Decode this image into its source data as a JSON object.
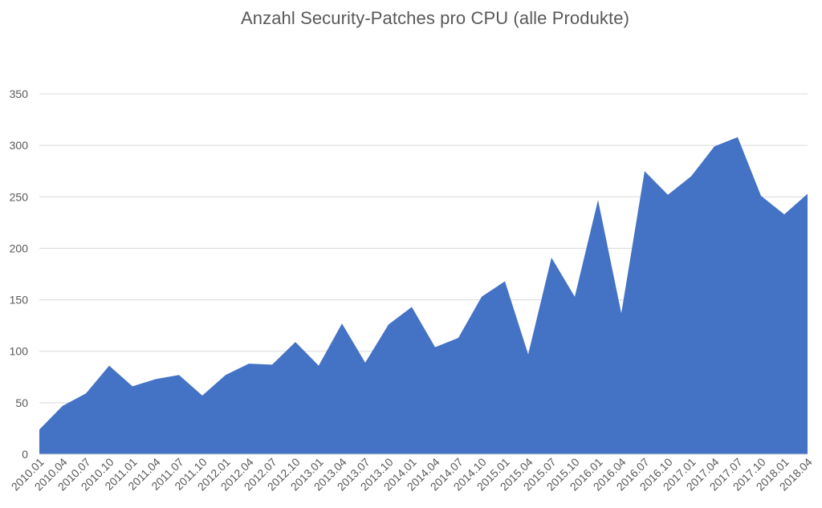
{
  "chart_data": {
    "type": "area",
    "title": "Anzahl Security-Patches pro CPU (alle Produkte)",
    "xlabel": "",
    "ylabel": "",
    "ylim": [
      0,
      350
    ],
    "yticks": [
      0,
      50,
      100,
      150,
      200,
      250,
      300,
      350
    ],
    "grid": true,
    "legend": "none",
    "series_color": "#4472c4",
    "categories": [
      "2010.01",
      "2010.04",
      "2010.07",
      "2010.10",
      "2011.01",
      "2011.04",
      "2011.07",
      "2011.10",
      "2012.01",
      "2012.04",
      "2012.07",
      "2012.10",
      "2013.01",
      "2013.04",
      "2013.07",
      "2013.10",
      "2014.01",
      "2014.04",
      "2014.07",
      "2014.10",
      "2015.01",
      "2015.04",
      "2015.07",
      "2015.10",
      "2016.01",
      "2016.04",
      "2016.07",
      "2016.10",
      "2017.01",
      "2017.04",
      "2017.07",
      "2017.10",
      "2018.01",
      "2018.04"
    ],
    "series": [
      {
        "values": [
          24,
          47,
          59,
          86,
          66,
          73,
          77,
          57,
          77,
          88,
          87,
          109,
          86,
          127,
          89,
          126,
          143,
          104,
          113,
          153,
          168,
          97,
          191,
          153,
          247,
          137,
          275,
          252,
          270,
          299,
          308,
          251,
          233,
          253
        ]
      }
    ]
  }
}
